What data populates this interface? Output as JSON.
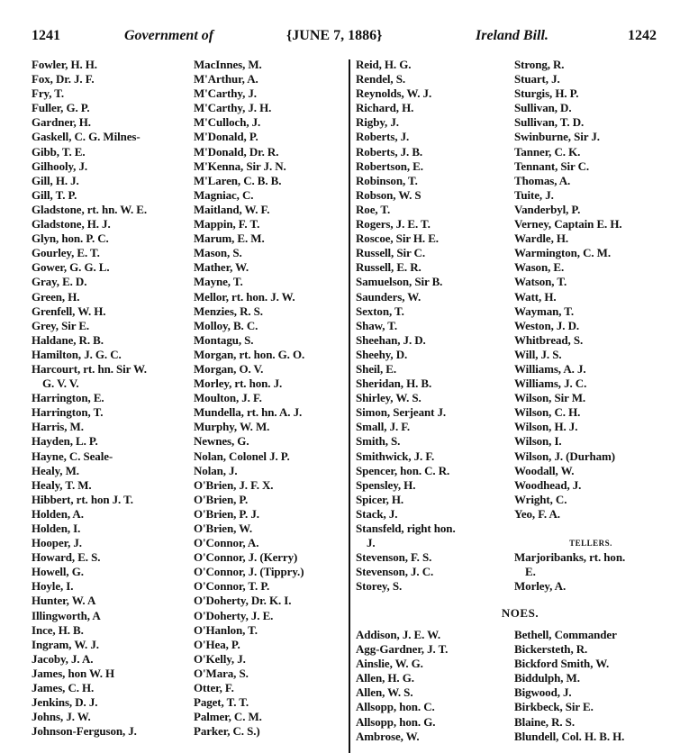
{
  "header": {
    "left_page": "1241",
    "left_title": "Government of",
    "date": "{JUNE 7, 1886}",
    "right_title": "Ireland Bill.",
    "right_page": "1242"
  },
  "columns": [
    [
      {
        "text": "Fowler, H. H."
      },
      {
        "text": "Fox, Dr. J. F."
      },
      {
        "text": "Fry, T."
      },
      {
        "text": "Fuller, G. P."
      },
      {
        "text": "Gardner, H."
      },
      {
        "text": "Gaskell, C. G. Milnes-"
      },
      {
        "text": "Gibb, T. E."
      },
      {
        "text": "Gilhooly, J."
      },
      {
        "text": "Gill, H. J."
      },
      {
        "text": "Gill, T. P."
      },
      {
        "text": "Gladstone, rt. hn. W. E."
      },
      {
        "text": "Gladstone, H. J."
      },
      {
        "text": "Glyn, hon. P. C."
      },
      {
        "text": "Gourley, E. T."
      },
      {
        "text": "Gower, G. G. L."
      },
      {
        "text": "Gray, E. D."
      },
      {
        "text": "Green, H."
      },
      {
        "text": "Grenfell, W. H."
      },
      {
        "text": "Grey, Sir E."
      },
      {
        "text": "Haldane, R. B."
      },
      {
        "text": "Hamilton, J. G. C."
      },
      {
        "text": "Harcourt, rt. hn. Sir W."
      },
      {
        "text": "G. V. V.",
        "cont": true
      },
      {
        "text": "Harrington, E."
      },
      {
        "text": "Harrington, T."
      },
      {
        "text": "Harris, M."
      },
      {
        "text": "Hayden, L. P."
      },
      {
        "text": "Hayne, C. Seale-"
      },
      {
        "text": "Healy, M."
      },
      {
        "text": "Healy, T. M."
      },
      {
        "text": "Hibbert, rt. hon J. T."
      },
      {
        "text": "Holden, A."
      },
      {
        "text": "Holden, I."
      },
      {
        "text": "Hooper, J."
      },
      {
        "text": "Howard, E. S."
      },
      {
        "text": "Howell, G."
      },
      {
        "text": "Hoyle, I."
      },
      {
        "text": "Hunter, W. A"
      },
      {
        "text": "Illingworth, A"
      },
      {
        "text": "Ince, H. B."
      },
      {
        "text": "Ingram, W. J."
      },
      {
        "text": "Jacoby, J. A."
      },
      {
        "text": "James, hon W. H"
      },
      {
        "text": "James, C. H."
      },
      {
        "text": "Jenkins, D. J."
      },
      {
        "text": "Johns, J. W."
      },
      {
        "text": "Johnson-Ferguson, J."
      }
    ],
    [
      {
        "text": "MacInnes, M."
      },
      {
        "text": "M'Arthur, A."
      },
      {
        "text": "M'Carthy, J."
      },
      {
        "text": "M'Carthy, J. H."
      },
      {
        "text": "M'Culloch, J."
      },
      {
        "text": "M'Donald, P."
      },
      {
        "text": "M'Donald, Dr. R."
      },
      {
        "text": "M'Kenna, Sir J. N."
      },
      {
        "text": "M'Laren, C. B. B."
      },
      {
        "text": "Magniac, C."
      },
      {
        "text": "Maitland, W. F."
      },
      {
        "text": "Mappin, F. T."
      },
      {
        "text": "Marum, E. M."
      },
      {
        "text": "Mason, S."
      },
      {
        "text": "Mather, W."
      },
      {
        "text": "Mayne, T."
      },
      {
        "text": "Mellor, rt. hon. J. W."
      },
      {
        "text": "Menzies, R. S."
      },
      {
        "text": "Molloy, B. C."
      },
      {
        "text": "Montagu, S."
      },
      {
        "text": "Morgan, rt. hon. G. O."
      },
      {
        "text": "Morgan, O. V."
      },
      {
        "text": "Morley, rt. hon. J."
      },
      {
        "text": "Moulton, J. F."
      },
      {
        "text": "Mundella, rt. hn. A. J."
      },
      {
        "text": "Murphy, W. M."
      },
      {
        "text": "Newnes, G."
      },
      {
        "text": "Nolan, Colonel J. P."
      },
      {
        "text": "Nolan, J."
      },
      {
        "text": "O'Brien, J. F. X."
      },
      {
        "text": "O'Brien, P."
      },
      {
        "text": "O'Brien, P. J."
      },
      {
        "text": "O'Brien, W."
      },
      {
        "text": "O'Connor, A."
      },
      {
        "text": "O'Connor, J. (Kerry)"
      },
      {
        "text": "O'Connor, J. (Tippry.)"
      },
      {
        "text": "O'Connor, T. P."
      },
      {
        "text": "O'Doherty, Dr. K. I."
      },
      {
        "text": "O'Doherty, J. E."
      },
      {
        "text": "O'Hanlon, T."
      },
      {
        "text": "O'Hea, P."
      },
      {
        "text": "O'Kelly, J."
      },
      {
        "text": "O'Mara, S."
      },
      {
        "text": "Otter, F."
      },
      {
        "text": "Paget, T. T."
      },
      {
        "text": "Palmer, C. M."
      },
      {
        "text": "Parker, C. S.)"
      }
    ],
    [
      {
        "text": "Reid, H. G."
      },
      {
        "text": "Rendel, S."
      },
      {
        "text": "Reynolds, W. J."
      },
      {
        "text": "Richard, H."
      },
      {
        "text": "Rigby, J."
      },
      {
        "text": "Roberts, J."
      },
      {
        "text": "Roberts, J. B."
      },
      {
        "text": "Robertson, E."
      },
      {
        "text": "Robinson, T."
      },
      {
        "text": "Robson, W. S"
      },
      {
        "text": "Roe, T."
      },
      {
        "text": "Rogers, J. E. T."
      },
      {
        "text": "Roscoe, Sir H. E."
      },
      {
        "text": "Russell, Sir C."
      },
      {
        "text": "Russell, E. R."
      },
      {
        "text": "Samuelson, Sir B."
      },
      {
        "text": "Saunders, W."
      },
      {
        "text": "Sexton, T."
      },
      {
        "text": "Shaw, T."
      },
      {
        "text": "Sheehan, J. D."
      },
      {
        "text": "Sheehy, D."
      },
      {
        "text": "Sheil, E."
      },
      {
        "text": "Sheridan, H. B."
      },
      {
        "text": "Shirley, W. S."
      },
      {
        "text": "Simon, Serjeant J."
      },
      {
        "text": "Small, J. F."
      },
      {
        "text": "Smith, S."
      },
      {
        "text": "Smithwick, J. F."
      },
      {
        "text": "Spencer, hon. C. R."
      },
      {
        "text": "Spensley, H."
      },
      {
        "text": "Spicer, H."
      },
      {
        "text": "Stack, J."
      },
      {
        "text": "Stansfeld, right hon."
      },
      {
        "text": "J.",
        "cont": true
      },
      {
        "text": "Stevenson, F. S."
      },
      {
        "text": "Stevenson, J. C."
      },
      {
        "text": "Storey, S."
      }
    ],
    [
      {
        "text": "Strong, R."
      },
      {
        "text": "Stuart, J."
      },
      {
        "text": "Sturgis, H. P."
      },
      {
        "text": "Sullivan, D."
      },
      {
        "text": "Sullivan, T. D."
      },
      {
        "text": "Swinburne, Sir J."
      },
      {
        "text": "Tanner, C. K."
      },
      {
        "text": "Tennant, Sir C."
      },
      {
        "text": "Thomas, A."
      },
      {
        "text": "Tuite, J."
      },
      {
        "text": "Vanderbyl, P."
      },
      {
        "text": "Verney, Captain E. H."
      },
      {
        "text": "Wardle, H."
      },
      {
        "text": "Warmington, C. M."
      },
      {
        "text": "Wason, E."
      },
      {
        "text": "Watson, T."
      },
      {
        "text": "Watt, H."
      },
      {
        "text": "Wayman, T."
      },
      {
        "text": "Weston, J. D."
      },
      {
        "text": "Whitbread, S."
      },
      {
        "text": "Will, J. S."
      },
      {
        "text": "Williams, A. J."
      },
      {
        "text": "Williams, J. C."
      },
      {
        "text": "Wilson, Sir M."
      },
      {
        "text": "Wilson, C. H."
      },
      {
        "text": "Wilson, H. J."
      },
      {
        "text": "Wilson, I."
      },
      {
        "text": "Wilson, J. (Durham)"
      },
      {
        "text": "Woodall, W."
      },
      {
        "text": "Woodhead, J."
      },
      {
        "text": "Wright, C."
      },
      {
        "text": "Yeo, F. A."
      },
      {
        "text": ""
      },
      {
        "text": "TELLERS.",
        "center": true
      },
      {
        "text": "Marjoribanks, rt. hon."
      },
      {
        "text": "E.",
        "cont": true
      },
      {
        "text": "Morley, A."
      }
    ]
  ],
  "noes_heading": "NOES.",
  "noes_columns": [
    [
      {
        "text": "Addison, J. E. W."
      },
      {
        "text": "Agg-Gardner, J. T."
      },
      {
        "text": "Ainslie, W. G."
      },
      {
        "text": "Allen, H. G."
      },
      {
        "text": "Allen, W. S."
      },
      {
        "text": "Allsopp, hon. C."
      },
      {
        "text": "Allsopp, hon. G."
      },
      {
        "text": "Ambrose, W."
      }
    ],
    [
      {
        "text": "Bethell, Commander"
      },
      {
        "text": "Bickersteth, R."
      },
      {
        "text": "Bickford Smith, W."
      },
      {
        "text": "Biddulph, M."
      },
      {
        "text": "Bigwood, J."
      },
      {
        "text": "Birkbeck, Sir E."
      },
      {
        "text": "Blaine, R. S."
      },
      {
        "text": "Blundell, Col. H. B. H."
      }
    ]
  ]
}
